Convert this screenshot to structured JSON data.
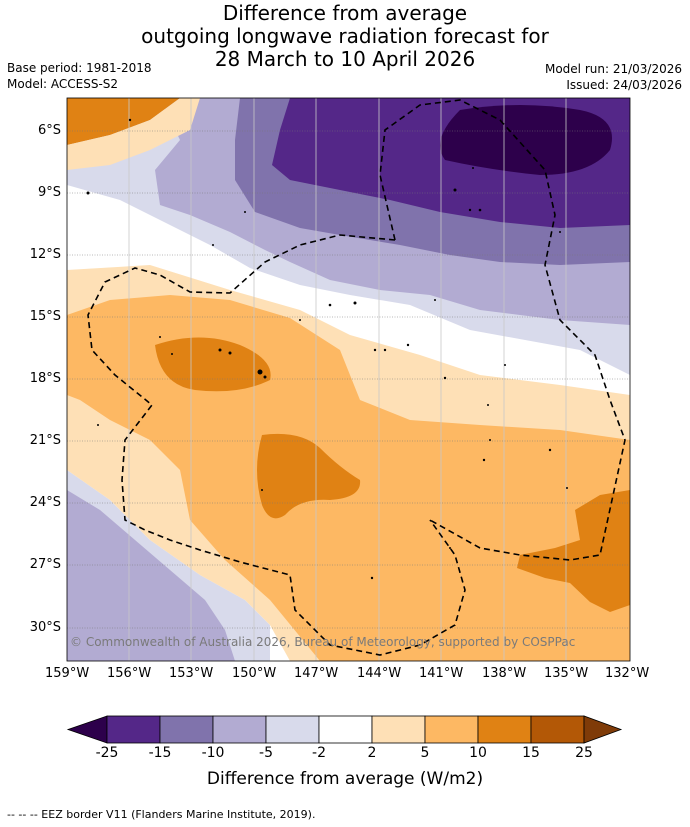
{
  "title": {
    "line1": "Difference from average",
    "line2": "outgoing longwave radiation forecast for",
    "line3": "28 March to 10 April 2026"
  },
  "meta": {
    "base_period": "Base period: 1981-2018",
    "model": "Model: ACCESS-S2",
    "model_run": "Model run: 21/03/2026",
    "issued": "Issued: 24/03/2026"
  },
  "axes": {
    "lat_labels": [
      "6°S",
      "9°S",
      "12°S",
      "15°S",
      "18°S",
      "21°S",
      "24°S",
      "27°S",
      "30°S"
    ],
    "lon_labels": [
      "159°W",
      "156°W",
      "153°W",
      "150°W",
      "147°W",
      "144°W",
      "141°W",
      "138°W",
      "135°W",
      "132°W"
    ]
  },
  "copyright": "© Commonwealth of Australia 2026, Bureau of Meteorology, supported by COSPPac",
  "colorbar": {
    "title": "Difference from average (W/m2)",
    "labels": [
      "-25",
      "-15",
      "-10",
      "-5",
      "-2",
      "2",
      "5",
      "10",
      "15",
      "25"
    ],
    "colors": {
      "below_min": "#2d004b",
      "n25_n15": "#542788",
      "n15_n10": "#8073ac",
      "n10_n5": "#b2abd2",
      "n5_n2": "#d8daeb",
      "n2_2": "#ffffff",
      "p2_5": "#fee0b6",
      "p5_10": "#fdb863",
      "p10_15": "#e08214",
      "p15_25": "#b35806",
      "above_max": "#7f3b08"
    }
  },
  "footer": "--  --  -- EEZ border V11 (Flanders Marine Institute, 2019)."
}
